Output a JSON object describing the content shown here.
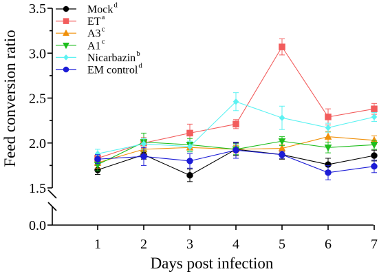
{
  "chart_data": {
    "type": "line",
    "title": "",
    "xlabel": "Days post infection",
    "ylabel": "Feed conversion ratio",
    "x": [
      1,
      2,
      3,
      4,
      5,
      6,
      7
    ],
    "xticks": [
      "1",
      "2",
      "3",
      "4",
      "5",
      "6",
      "7"
    ],
    "yticks": [
      "0.0",
      "1.5",
      "2.0",
      "2.5",
      "3.0",
      "3.5"
    ],
    "ylim": [
      1.5,
      3.5
    ],
    "y_axis_break": [
      0.0,
      1.5
    ],
    "grid": false,
    "legend_position": "top-left",
    "series": [
      {
        "name": "Mock",
        "superscript": "d",
        "color": "#000000",
        "marker": "circle",
        "values": [
          1.7,
          1.87,
          1.64,
          1.93,
          1.87,
          1.76,
          1.86
        ],
        "errors": [
          0.05,
          0.05,
          0.07,
          0.07,
          0.05,
          0.07,
          0.06
        ]
      },
      {
        "name": "ET",
        "superscript": "a",
        "color": "#f25c5c",
        "marker": "square",
        "values": [
          1.83,
          2.0,
          2.11,
          2.21,
          3.07,
          2.29,
          2.38
        ],
        "errors": [
          0.04,
          0.06,
          0.1,
          0.05,
          0.09,
          0.09,
          0.06
        ]
      },
      {
        "name": "A3",
        "superscript": "c",
        "color": "#f0900a",
        "marker": "triangle-up",
        "values": [
          1.78,
          1.93,
          1.95,
          1.93,
          1.94,
          2.07,
          2.03
        ],
        "errors": [
          0.06,
          0.05,
          0.05,
          0.04,
          0.04,
          0.06,
          0.05
        ]
      },
      {
        "name": "A1",
        "superscript": "c",
        "color": "#1dbe1d",
        "marker": "triangle-down",
        "values": [
          1.76,
          2.01,
          1.98,
          1.93,
          2.02,
          1.95,
          1.98
        ],
        "errors": [
          0.07,
          0.1,
          0.07,
          0.06,
          0.05,
          0.06,
          0.05
        ]
      },
      {
        "name": "Nicarbazin",
        "superscript": "b",
        "color": "#5cf2f2",
        "marker": "diamond",
        "values": [
          1.88,
          1.99,
          1.96,
          2.46,
          2.28,
          2.17,
          2.29
        ],
        "errors": [
          0.05,
          0.06,
          0.06,
          0.1,
          0.13,
          0.05,
          0.05
        ]
      },
      {
        "name": "EM control",
        "superscript": "d",
        "color": "#1c1cd6",
        "marker": "circle",
        "values": [
          1.82,
          1.85,
          1.8,
          1.92,
          1.87,
          1.67,
          1.74
        ],
        "errors": [
          0.05,
          0.1,
          0.08,
          0.09,
          0.04,
          0.08,
          0.07
        ]
      }
    ]
  }
}
